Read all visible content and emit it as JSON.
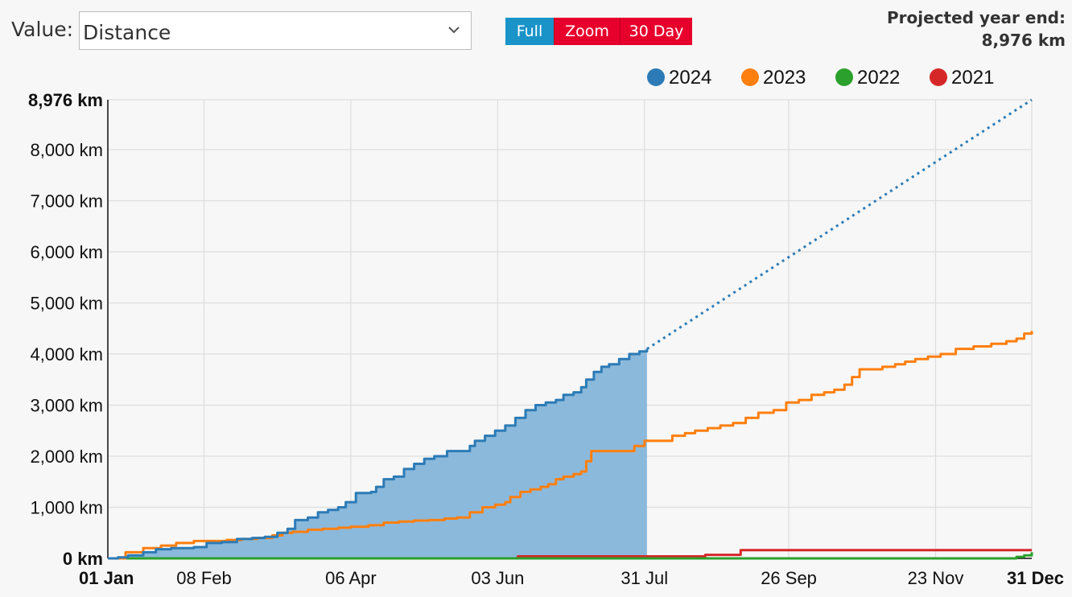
{
  "controls": {
    "value_label": "Value:",
    "value_selected": "Distance",
    "buttons": {
      "full": "Full",
      "zoom": "Zoom",
      "thirty_day": "30 Day"
    }
  },
  "projection": {
    "label": "Projected year end:",
    "value": "8,976 km"
  },
  "colors": {
    "s2024": "#2c7bb6",
    "s2024_fill": "#8bb9db",
    "s2023": "#ff7f0e",
    "s2022": "#2ca02c",
    "s2021": "#d62728",
    "button_active": "#1a93c9",
    "button_inactive": "#e8002c",
    "grid": "#dddddd"
  },
  "chart_data": {
    "type": "line",
    "title": "",
    "x_unit": "day of year",
    "x_range": [
      1,
      366
    ],
    "y_range": [
      0,
      8976
    ],
    "y_unit": "km",
    "grid": true,
    "legend_position": "top-right",
    "y_ticks": [
      {
        "value": 0,
        "label": "0 km",
        "bold": true
      },
      {
        "value": 1000,
        "label": "1,000 km"
      },
      {
        "value": 2000,
        "label": "2,000 km"
      },
      {
        "value": 3000,
        "label": "3,000 km"
      },
      {
        "value": 4000,
        "label": "4,000 km"
      },
      {
        "value": 5000,
        "label": "5,000 km"
      },
      {
        "value": 6000,
        "label": "6,000 km"
      },
      {
        "value": 7000,
        "label": "7,000 km"
      },
      {
        "value": 8000,
        "label": "8,000 km"
      },
      {
        "value": 8976,
        "label": "8,976 km",
        "bold": true
      }
    ],
    "x_ticks": [
      {
        "value": 1,
        "label": "01 Jan",
        "bold": true
      },
      {
        "value": 39,
        "label": "08 Feb"
      },
      {
        "value": 97,
        "label": "06 Apr"
      },
      {
        "value": 155,
        "label": "03 Jun"
      },
      {
        "value": 213,
        "label": "31 Jul"
      },
      {
        "value": 270,
        "label": "26 Sep"
      },
      {
        "value": 328,
        "label": "23 Nov"
      },
      {
        "value": 366,
        "label": "31 Dec",
        "bold": true
      }
    ],
    "series": [
      {
        "name": "2024",
        "color_key": "s2024",
        "area": true,
        "points": [
          [
            1,
            0
          ],
          [
            5,
            20
          ],
          [
            9,
            60
          ],
          [
            15,
            120
          ],
          [
            20,
            180
          ],
          [
            26,
            200
          ],
          [
            32,
            200
          ],
          [
            35,
            220
          ],
          [
            40,
            300
          ],
          [
            46,
            320
          ],
          [
            52,
            380
          ],
          [
            58,
            400
          ],
          [
            63,
            420
          ],
          [
            68,
            500
          ],
          [
            72,
            580
          ],
          [
            75,
            750
          ],
          [
            80,
            800
          ],
          [
            84,
            900
          ],
          [
            88,
            950
          ],
          [
            92,
            1000
          ],
          [
            95,
            1100
          ],
          [
            99,
            1280
          ],
          [
            105,
            1300
          ],
          [
            107,
            1400
          ],
          [
            110,
            1550
          ],
          [
            114,
            1600
          ],
          [
            118,
            1750
          ],
          [
            122,
            1850
          ],
          [
            126,
            1950
          ],
          [
            130,
            2000
          ],
          [
            135,
            2100
          ],
          [
            138,
            2100
          ],
          [
            141,
            2100
          ],
          [
            144,
            2200
          ],
          [
            146,
            2300
          ],
          [
            150,
            2400
          ],
          [
            154,
            2500
          ],
          [
            158,
            2600
          ],
          [
            162,
            2750
          ],
          [
            166,
            2900
          ],
          [
            170,
            3000
          ],
          [
            174,
            3050
          ],
          [
            178,
            3100
          ],
          [
            181,
            3200
          ],
          [
            185,
            3250
          ],
          [
            188,
            3350
          ],
          [
            190,
            3500
          ],
          [
            193,
            3650
          ],
          [
            196,
            3750
          ],
          [
            199,
            3800
          ],
          [
            203,
            3900
          ],
          [
            207,
            4000
          ],
          [
            211,
            4050
          ],
          [
            214,
            4100
          ]
        ]
      },
      {
        "name": "2024 projection",
        "color_key": "s2024",
        "dashed": true,
        "points": [
          [
            214,
            4100
          ],
          [
            366,
            8976
          ]
        ]
      },
      {
        "name": "2023",
        "color_key": "s2023",
        "points": [
          [
            1,
            0
          ],
          [
            8,
            120
          ],
          [
            15,
            200
          ],
          [
            22,
            250
          ],
          [
            28,
            300
          ],
          [
            35,
            340
          ],
          [
            42,
            340
          ],
          [
            48,
            360
          ],
          [
            54,
            380
          ],
          [
            60,
            400
          ],
          [
            66,
            450
          ],
          [
            70,
            500
          ],
          [
            74,
            520
          ],
          [
            80,
            560
          ],
          [
            86,
            580
          ],
          [
            92,
            600
          ],
          [
            97,
            620
          ],
          [
            104,
            650
          ],
          [
            110,
            700
          ],
          [
            116,
            720
          ],
          [
            122,
            740
          ],
          [
            128,
            750
          ],
          [
            134,
            780
          ],
          [
            139,
            800
          ],
          [
            144,
            900
          ],
          [
            149,
            1000
          ],
          [
            154,
            1050
          ],
          [
            158,
            1100
          ],
          [
            160,
            1200
          ],
          [
            164,
            1300
          ],
          [
            168,
            1350
          ],
          [
            172,
            1400
          ],
          [
            175,
            1450
          ],
          [
            178,
            1550
          ],
          [
            181,
            1600
          ],
          [
            185,
            1650
          ],
          [
            188,
            1700
          ],
          [
            190,
            1900
          ],
          [
            192,
            2100
          ],
          [
            198,
            2100
          ],
          [
            204,
            2100
          ],
          [
            209,
            2200
          ],
          [
            213,
            2300
          ],
          [
            220,
            2300
          ],
          [
            224,
            2400
          ],
          [
            229,
            2450
          ],
          [
            233,
            2500
          ],
          [
            238,
            2550
          ],
          [
            243,
            2600
          ],
          [
            248,
            2650
          ],
          [
            253,
            2750
          ],
          [
            258,
            2850
          ],
          [
            264,
            2900
          ],
          [
            269,
            3050
          ],
          [
            274,
            3100
          ],
          [
            279,
            3200
          ],
          [
            284,
            3250
          ],
          [
            288,
            3300
          ],
          [
            292,
            3400
          ],
          [
            295,
            3550
          ],
          [
            298,
            3700
          ],
          [
            302,
            3700
          ],
          [
            307,
            3750
          ],
          [
            312,
            3800
          ],
          [
            316,
            3850
          ],
          [
            320,
            3900
          ],
          [
            325,
            3950
          ],
          [
            330,
            4000
          ],
          [
            336,
            4100
          ],
          [
            343,
            4150
          ],
          [
            350,
            4200
          ],
          [
            356,
            4250
          ],
          [
            360,
            4300
          ],
          [
            363,
            4400
          ],
          [
            366,
            4450
          ]
        ]
      },
      {
        "name": "2022",
        "color_key": "s2022",
        "points": [
          [
            1,
            0
          ],
          [
            357,
            0
          ],
          [
            360,
            30
          ],
          [
            363,
            60
          ],
          [
            366,
            120
          ]
        ]
      },
      {
        "name": "2021",
        "color_key": "s2021",
        "points": [
          [
            1,
            0
          ],
          [
            163,
            0
          ],
          [
            163,
            40
          ],
          [
            237,
            40
          ],
          [
            237,
            70
          ],
          [
            251,
            70
          ],
          [
            251,
            160
          ],
          [
            366,
            160
          ]
        ]
      }
    ],
    "legend": [
      {
        "label": "2024",
        "color_key": "s2024"
      },
      {
        "label": "2023",
        "color_key": "s2023"
      },
      {
        "label": "2022",
        "color_key": "s2022"
      },
      {
        "label": "2021",
        "color_key": "s2021"
      }
    ]
  }
}
